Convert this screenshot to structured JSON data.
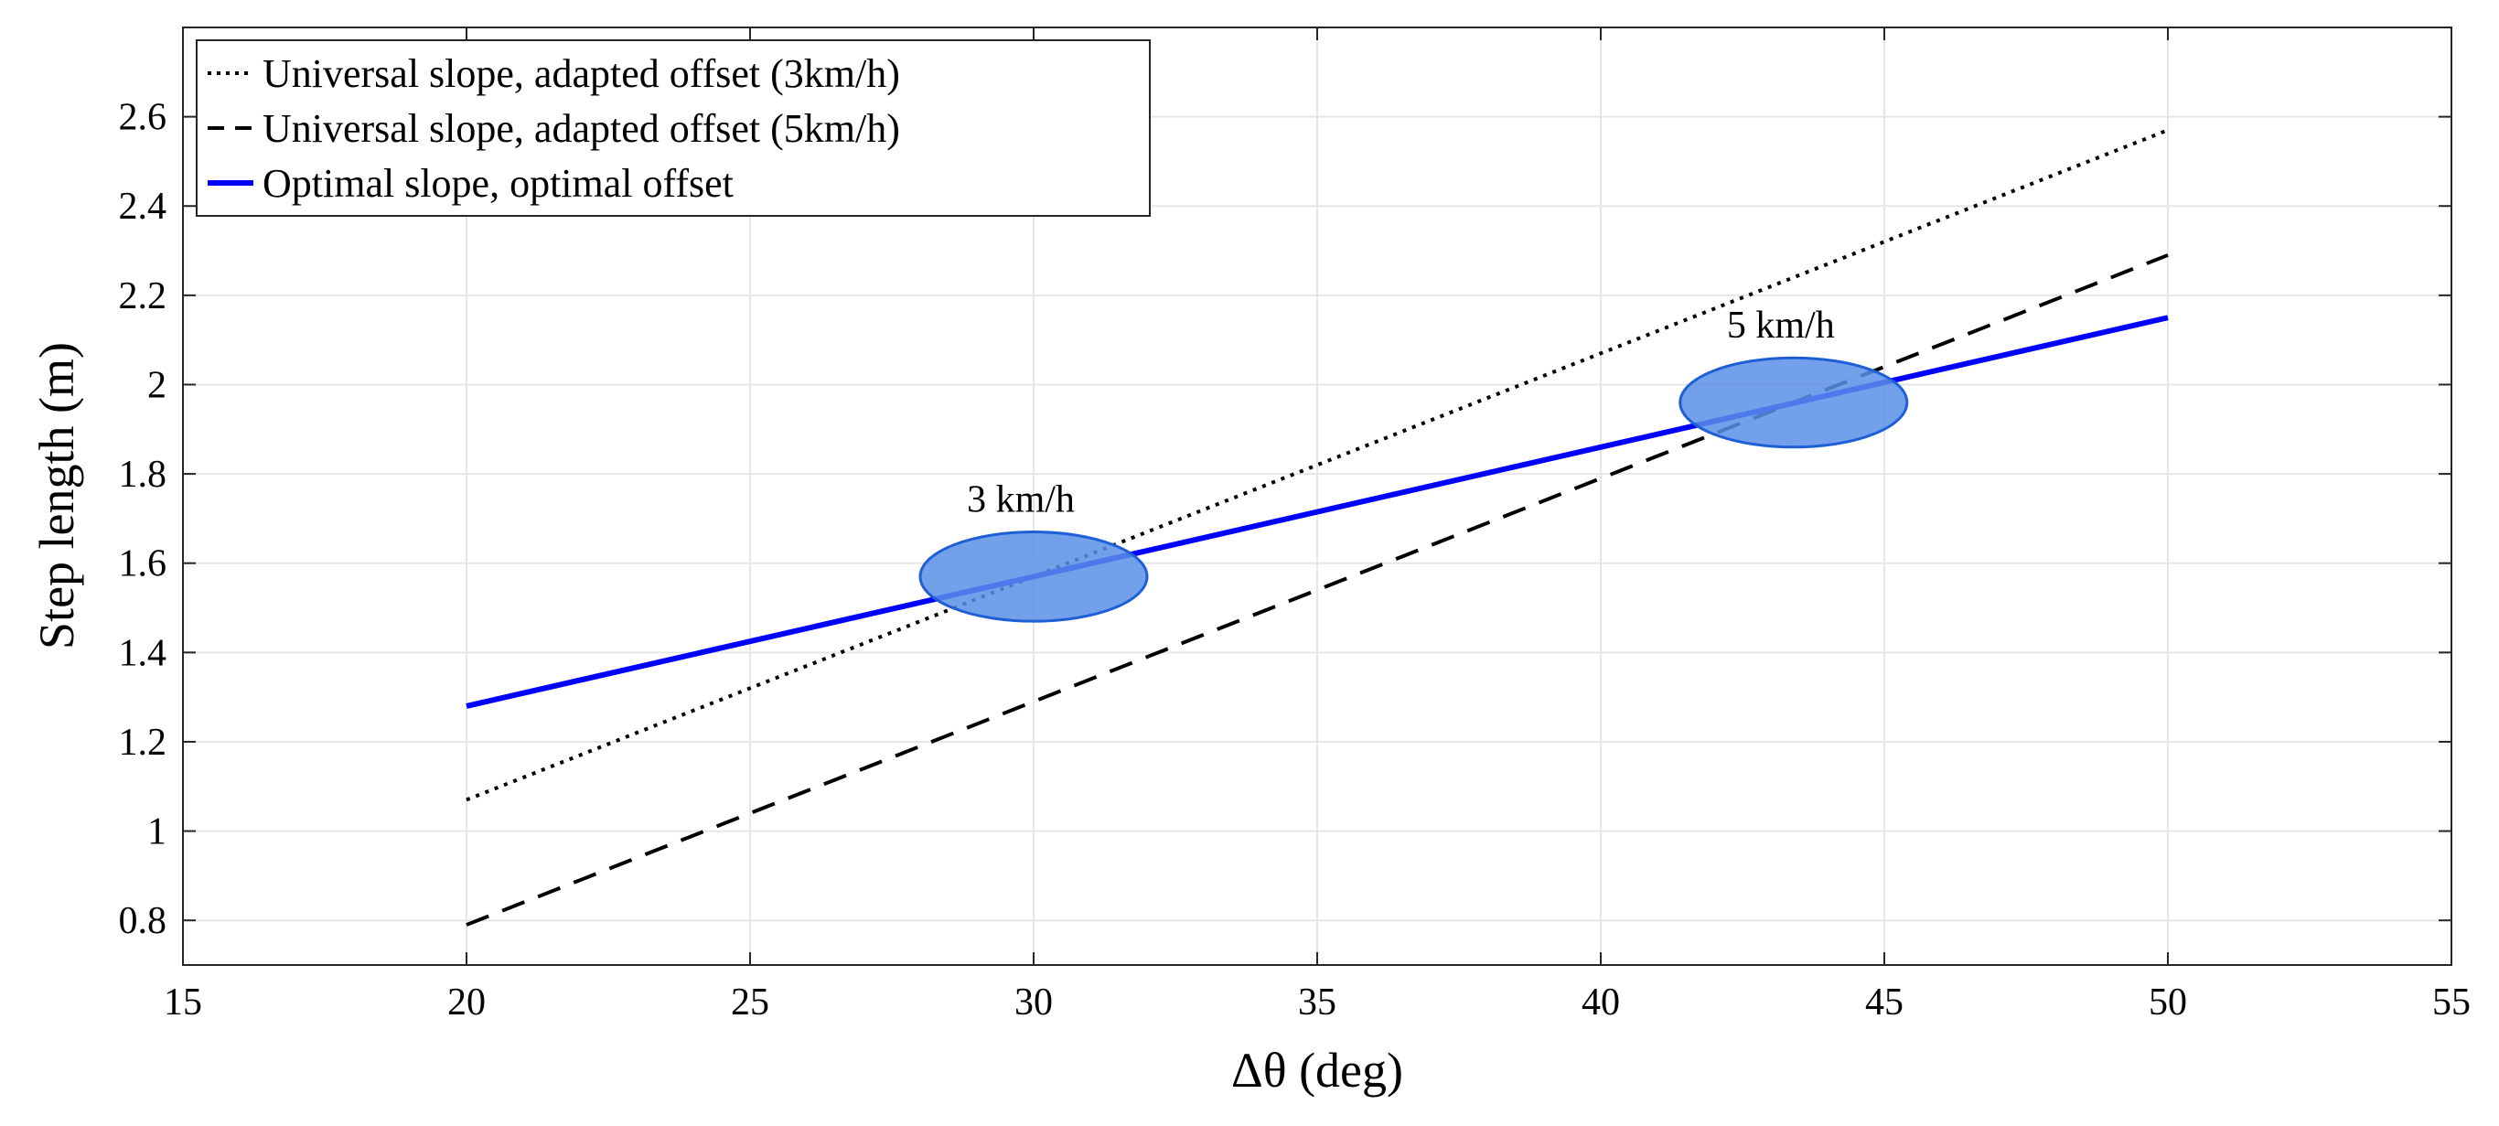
{
  "chart_data": {
    "type": "line",
    "xlabel": "Δθ (deg)",
    "ylabel": "Step length (m)",
    "xlim": [
      15,
      55
    ],
    "ylim": [
      0.7,
      2.8
    ],
    "xticks": [
      15,
      20,
      25,
      30,
      35,
      40,
      45,
      50,
      55
    ],
    "xtick_labels": [
      "15",
      "20",
      "25",
      "30",
      "35",
      "40",
      "45",
      "50",
      "55"
    ],
    "yticks": [
      0.8,
      1.0,
      1.2,
      1.4,
      1.6,
      1.8,
      2.0,
      2.2,
      2.4,
      2.6
    ],
    "ytick_labels": [
      "0.8",
      "1",
      "1.2",
      "1.4",
      "1.6",
      "1.8",
      "2",
      "2.2",
      "2.4",
      "2.6"
    ],
    "grid": true,
    "legend_position": "top-left",
    "series": [
      {
        "name": "Universal slope, adapted offset (3km/h)",
        "style": "dotted",
        "color": "#000000",
        "x": [
          20,
          50
        ],
        "y": [
          1.07,
          2.57
        ]
      },
      {
        "name": "Universal slope, adapted offset (5km/h)",
        "style": "dashed",
        "color": "#000000",
        "x": [
          20,
          50
        ],
        "y": [
          0.79,
          2.29
        ]
      },
      {
        "name": "Optimal slope, optimal offset",
        "style": "solid",
        "color": "#0000ff",
        "x": [
          20,
          50
        ],
        "y": [
          1.28,
          2.15
        ]
      }
    ],
    "annotations": [
      {
        "label": "3 km/h",
        "x": 30,
        "y": 1.57,
        "rx": 2.0,
        "ry": 0.1,
        "fill": "#5a8fe6",
        "stroke": "#1f5fd6"
      },
      {
        "label": "5 km/h",
        "x": 43.4,
        "y": 1.96,
        "rx": 2.0,
        "ry": 0.1,
        "fill": "#5a8fe6",
        "stroke": "#1f5fd6"
      }
    ]
  }
}
